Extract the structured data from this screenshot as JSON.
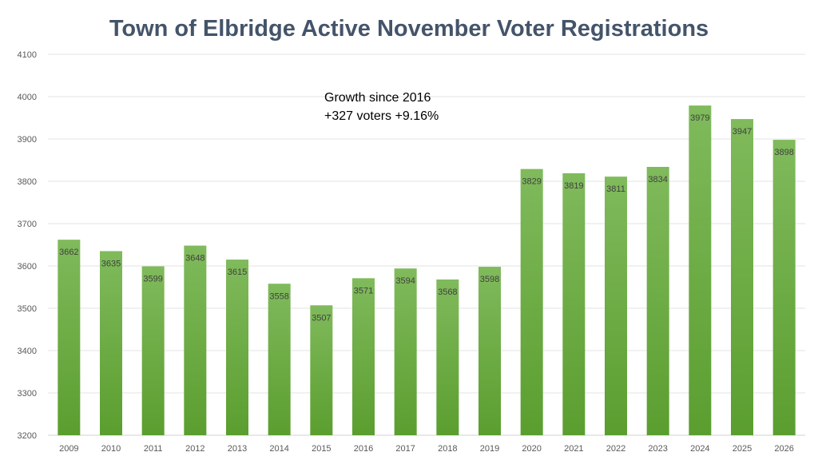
{
  "chart_data": {
    "type": "bar",
    "title": "Town of Elbridge Active November Voter Registrations",
    "xlabel": "",
    "ylabel": "",
    "categories": [
      "2009",
      "2010",
      "2011",
      "2012",
      "2013",
      "2014",
      "2015",
      "2016",
      "2017",
      "2018",
      "2019",
      "2020",
      "2021",
      "2022",
      "2023",
      "2024",
      "2025",
      "2026"
    ],
    "values": [
      3662,
      3635,
      3599,
      3648,
      3615,
      3558,
      3507,
      3571,
      3594,
      3568,
      3598,
      3829,
      3819,
      3811,
      3834,
      3979,
      3947,
      3898
    ],
    "ylim": [
      3200,
      4100
    ],
    "yticks": [
      3200,
      3300,
      3400,
      3500,
      3600,
      3700,
      3800,
      3900,
      4000,
      4100
    ],
    "grid": true,
    "legend": "none",
    "annotations": [
      "Growth since 2016",
      "+327 voters +9.16%"
    ],
    "colors": {
      "bar_top": "#80ba5c",
      "bar_bottom": "#5b9e2f",
      "title": "#44546a",
      "grid": "#e3e3e3"
    }
  }
}
